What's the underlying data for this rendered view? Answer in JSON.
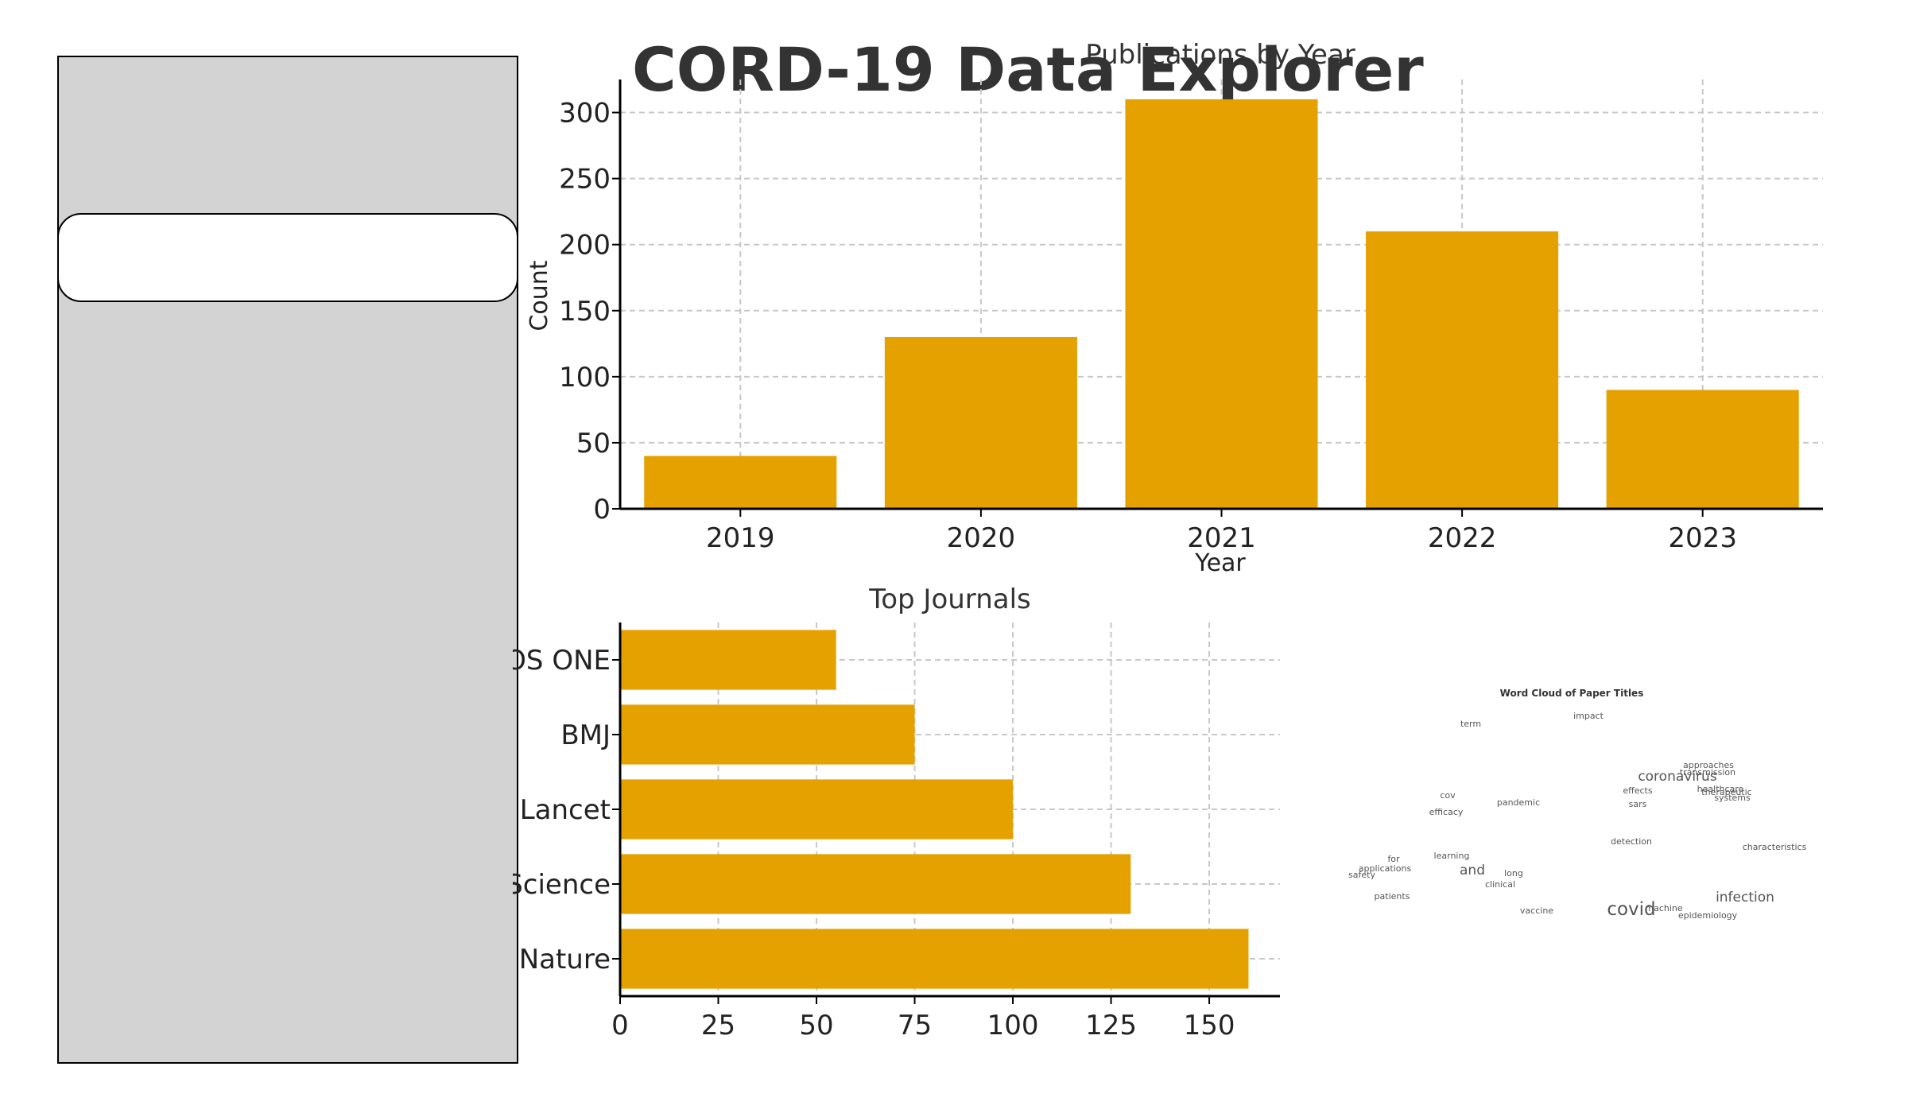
{
  "app": {
    "title": "CORD-19 Data Explorer"
  },
  "colors": {
    "bar": "#E5A100",
    "grid": "#c8c8c8",
    "axis": "#000000",
    "sidebar": "#d3d3d3"
  },
  "chart_data": [
    {
      "type": "bar",
      "title": "Publications by Year",
      "xlabel": "Year",
      "ylabel": "Count",
      "categories": [
        "2019",
        "2020",
        "2021",
        "2022",
        "2023"
      ],
      "values": [
        40,
        130,
        310,
        210,
        90
      ],
      "ylim": [
        0,
        325
      ],
      "yticks": [
        0,
        50,
        100,
        150,
        200,
        250,
        300
      ],
      "grid": true
    },
    {
      "type": "bar",
      "orientation": "horizontal",
      "title": "Top Journals",
      "categories": [
        "PLOS ONE",
        "BMJ",
        "Lancet",
        "Science",
        "Nature"
      ],
      "values": [
        55,
        75,
        100,
        130,
        160
      ],
      "xlim": [
        0,
        168
      ],
      "xticks": [
        0,
        25,
        50,
        75,
        100,
        125,
        150
      ],
      "grid": true
    }
  ],
  "wordcloud": {
    "title": "Word Cloud of Paper Titles",
    "words": [
      {
        "text": "term",
        "weight": 1
      },
      {
        "text": "impact",
        "weight": 1
      },
      {
        "text": "approaches",
        "weight": 1
      },
      {
        "text": "transmission",
        "weight": 1
      },
      {
        "text": "coronavirus",
        "weight": 2
      },
      {
        "text": "cov",
        "weight": 1
      },
      {
        "text": "effects",
        "weight": 1
      },
      {
        "text": "healthcare",
        "weight": 1
      },
      {
        "text": "therapeutic",
        "weight": 1
      },
      {
        "text": "systems",
        "weight": 1
      },
      {
        "text": "pandemic",
        "weight": 1
      },
      {
        "text": "sars",
        "weight": 1
      },
      {
        "text": "efficacy",
        "weight": 1
      },
      {
        "text": "detection",
        "weight": 1
      },
      {
        "text": "characteristics",
        "weight": 1
      },
      {
        "text": "for",
        "weight": 1
      },
      {
        "text": "learning",
        "weight": 1
      },
      {
        "text": "applications",
        "weight": 1
      },
      {
        "text": "and",
        "weight": 2
      },
      {
        "text": "long",
        "weight": 1
      },
      {
        "text": "safety",
        "weight": 1
      },
      {
        "text": "clinical",
        "weight": 1
      },
      {
        "text": "patients",
        "weight": 1
      },
      {
        "text": "infection",
        "weight": 2
      },
      {
        "text": "machine",
        "weight": 1
      },
      {
        "text": "covid",
        "weight": 3
      },
      {
        "text": "vaccine",
        "weight": 1
      },
      {
        "text": "epidemiology",
        "weight": 1
      }
    ]
  }
}
